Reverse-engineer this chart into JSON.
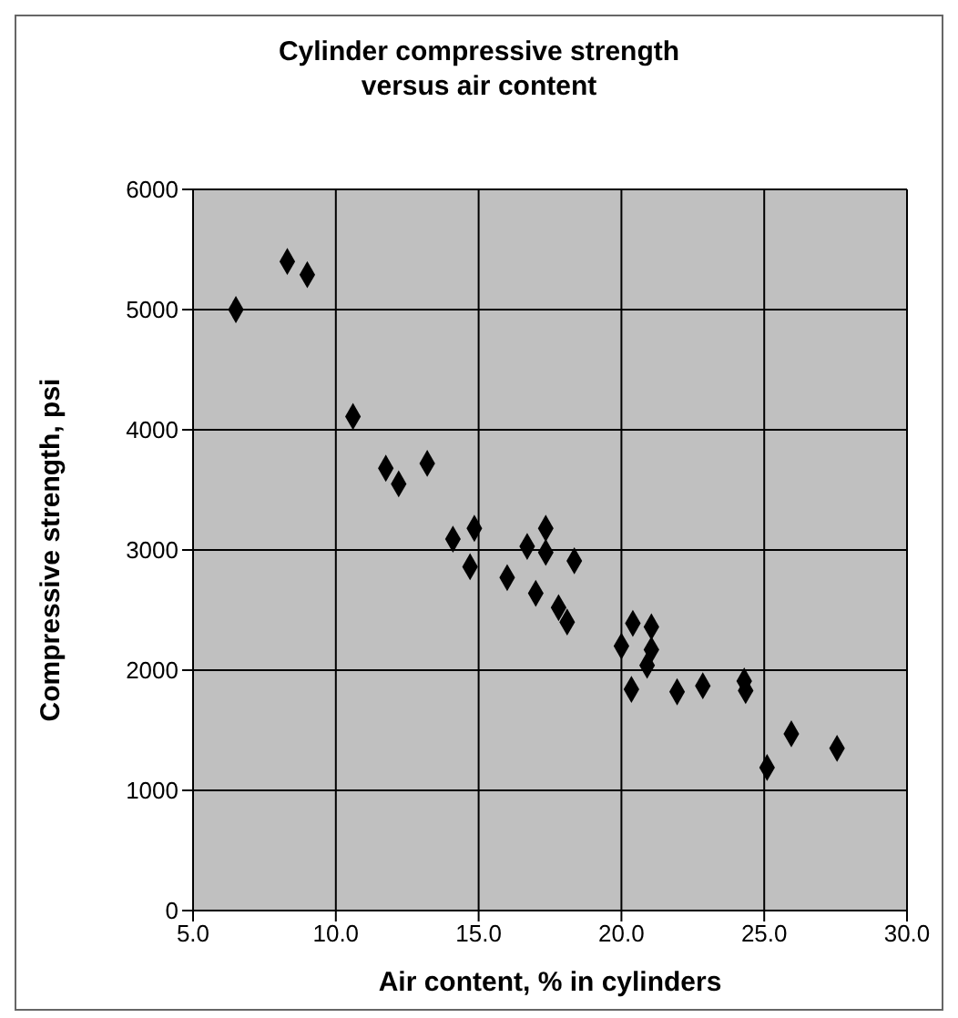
{
  "chart_data": {
    "type": "scatter",
    "title": "Cylinder compressive strength versus air content",
    "xlabel": "Air content, % in cylinders",
    "ylabel": "Compressive strength, psi",
    "x": [
      6.5,
      8.3,
      9.0,
      10.6,
      11.75,
      12.2,
      13.2,
      14.1,
      14.85,
      14.7,
      16.0,
      16.7,
      17.35,
      17.35,
      17.0,
      18.35,
      17.8,
      18.1,
      20.0,
      20.4,
      21.05,
      21.05,
      20.9,
      20.35,
      21.95,
      22.85,
      24.3,
      24.35,
      25.1,
      25.95,
      27.55
    ],
    "series": [
      {
        "color": "#000000",
        "values": [
          5000,
          5400,
          5290,
          4110,
          3680,
          3550,
          3720,
          3090,
          3180,
          2860,
          2770,
          3030,
          3180,
          2980,
          2640,
          2910,
          2520,
          2400,
          2200,
          2390,
          2360,
          2170,
          2040,
          1840,
          1820,
          1870,
          1910,
          1830,
          1190,
          1470,
          1350
        ]
      }
    ],
    "xlim": [
      5,
      30
    ],
    "xticks": [
      {
        "value": 5,
        "label": "5.0"
      },
      {
        "value": 10,
        "label": "10.0"
      },
      {
        "value": 15,
        "label": "15.0"
      },
      {
        "value": 20,
        "label": "20.0"
      },
      {
        "value": 25,
        "label": "25.0"
      },
      {
        "value": 30,
        "label": "30.0"
      }
    ],
    "ylim": [
      0,
      6000
    ],
    "yticks": [
      0,
      1000,
      2000,
      3000,
      4000,
      5000,
      6000
    ],
    "grid": true,
    "marker": "diamond"
  }
}
